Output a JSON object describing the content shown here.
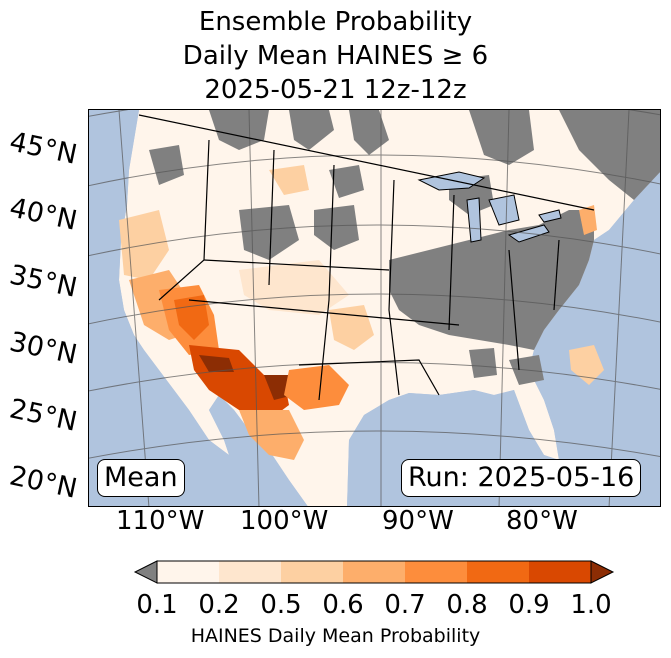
{
  "title": {
    "line1": "Ensemble Probability",
    "line2": "Daily Mean HAINES ≥ 6",
    "line3": "2025-05-21 12z-12z"
  },
  "lat_labels": [
    "45°N",
    "40°N",
    "35°N",
    "30°N",
    "25°N",
    "20°N"
  ],
  "lon_labels": [
    "110°W",
    "100°W",
    "90°W",
    "80°W"
  ],
  "mean_box": "Mean",
  "run_box": "Run: 2025-05-16",
  "colorbar": {
    "ticks": [
      "0.1",
      "0.2",
      "0.5",
      "0.6",
      "0.7",
      "0.8",
      "0.9",
      "1.0"
    ],
    "colors": [
      "#fff5eb",
      "#fee6ce",
      "#fdd0a2",
      "#fdae6b",
      "#fd8d3c",
      "#f16913",
      "#d94801",
      "#8c2d04"
    ],
    "under_color": "#808080",
    "label": "HAINES Daily Mean Probability"
  },
  "colors": {
    "ocean": "#b0c4de",
    "no_data_gray": "#808080",
    "land_low": "#fff5eb"
  }
}
